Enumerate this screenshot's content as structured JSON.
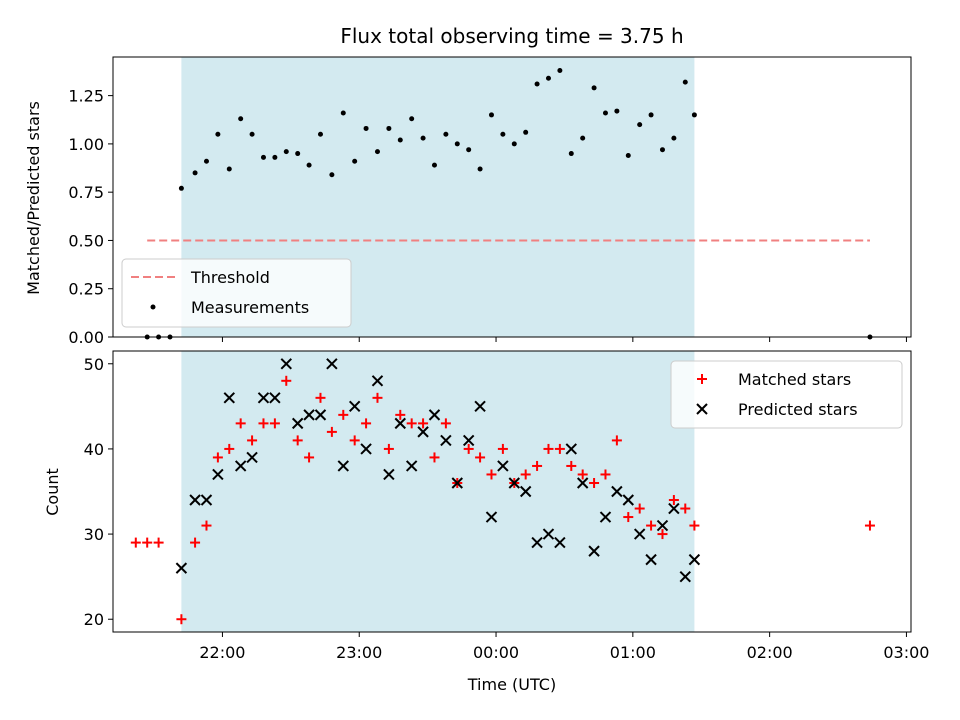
{
  "chart_data": [
    {
      "type": "scatter",
      "title": "Flux total observing time = 3.75 h",
      "ylabel": "Matched/Predicted stars",
      "xlabel": "",
      "ylim": [
        0,
        1.45
      ],
      "xlim": [
        "21:12",
        "03:02"
      ],
      "yticks": [
        0.0,
        0.25,
        0.5,
        0.75,
        1.0,
        1.25
      ],
      "ytick_labels": [
        "0.00",
        "0.25",
        "0.50",
        "0.75",
        "1.00",
        "1.25"
      ],
      "shaded_span": {
        "start": "21:42",
        "end": "01:27",
        "color": "#d3eaf0"
      },
      "threshold": {
        "name": "Threshold",
        "value": 0.5,
        "x_start": "21:27",
        "x_end": "02:44",
        "color": "#f08080",
        "style": "dashed"
      },
      "legend": {
        "position": "lower-left",
        "entries": [
          "Threshold",
          "Measurements"
        ]
      },
      "series": [
        {
          "name": "Measurements",
          "color": "#000000",
          "x": [
            "21:27",
            "21:32",
            "21:37",
            "21:42",
            "21:48",
            "21:53",
            "21:58",
            "22:03",
            "22:08",
            "22:13",
            "22:18",
            "22:23",
            "22:28",
            "22:33",
            "22:38",
            "22:43",
            "22:48",
            "22:53",
            "22:58",
            "23:03",
            "23:08",
            "23:13",
            "23:18",
            "23:23",
            "23:28",
            "23:33",
            "23:38",
            "23:43",
            "23:48",
            "23:53",
            "23:58",
            "00:03",
            "00:08",
            "00:13",
            "00:18",
            "00:23",
            "00:28",
            "00:33",
            "00:38",
            "00:43",
            "00:48",
            "00:53",
            "00:58",
            "01:03",
            "01:08",
            "01:13",
            "01:18",
            "01:23",
            "01:27",
            "02:44"
          ],
          "y": [
            0.0,
            0.0,
            0.0,
            0.77,
            0.85,
            0.91,
            1.05,
            0.87,
            1.13,
            1.05,
            0.93,
            0.93,
            0.96,
            0.95,
            0.89,
            1.05,
            0.84,
            1.16,
            0.91,
            1.08,
            0.96,
            1.08,
            1.02,
            1.13,
            1.03,
            0.89,
            1.05,
            1.0,
            0.97,
            0.87,
            1.15,
            1.05,
            1.0,
            1.06,
            1.31,
            1.34,
            1.38,
            0.95,
            1.03,
            1.29,
            1.16,
            1.17,
            0.94,
            1.1,
            1.15,
            0.97,
            1.03,
            1.32,
            1.15,
            0.0
          ]
        }
      ]
    },
    {
      "type": "scatter",
      "title": "",
      "ylabel": "Count",
      "xlabel": "Time (UTC)",
      "ylim": [
        18.5,
        51.5
      ],
      "xlim": [
        "21:12",
        "03:02"
      ],
      "yticks": [
        20,
        30,
        40,
        50
      ],
      "ytick_labels": [
        "20",
        "30",
        "40",
        "50"
      ],
      "xticks": [
        "22:00",
        "23:00",
        "00:00",
        "01:00",
        "02:00",
        "03:00"
      ],
      "shaded_span": {
        "start": "21:42",
        "end": "01:27",
        "color": "#d3eaf0"
      },
      "legend": {
        "position": "upper-right",
        "entries": [
          "Matched stars",
          "Predicted stars"
        ]
      },
      "series": [
        {
          "name": "Matched stars",
          "marker": "plus",
          "color": "#ff0000",
          "x": [
            "21:22",
            "21:27",
            "21:32",
            "21:42",
            "21:48",
            "21:53",
            "21:58",
            "22:03",
            "22:08",
            "22:13",
            "22:18",
            "22:23",
            "22:28",
            "22:33",
            "22:38",
            "22:43",
            "22:48",
            "22:53",
            "22:58",
            "23:03",
            "23:08",
            "23:13",
            "23:18",
            "23:23",
            "23:28",
            "23:33",
            "23:38",
            "23:43",
            "23:48",
            "23:53",
            "23:58",
            "00:03",
            "00:08",
            "00:13",
            "00:18",
            "00:23",
            "00:28",
            "00:33",
            "00:38",
            "00:43",
            "00:48",
            "00:53",
            "00:58",
            "01:03",
            "01:08",
            "01:13",
            "01:18",
            "01:23",
            "01:27",
            "02:44"
          ],
          "y": [
            29,
            29,
            29,
            20,
            29,
            31,
            39,
            40,
            43,
            41,
            43,
            43,
            48,
            41,
            39,
            46,
            42,
            44,
            41,
            43,
            46,
            40,
            44,
            43,
            43,
            39,
            43,
            36,
            40,
            39,
            37,
            40,
            36,
            37,
            38,
            40,
            40,
            38,
            37,
            36,
            37,
            41,
            32,
            33,
            31,
            30,
            34,
            33,
            31,
            31
          ]
        },
        {
          "name": "Predicted stars",
          "marker": "x",
          "color": "#000000",
          "x": [
            "21:42",
            "21:48",
            "21:53",
            "21:58",
            "22:03",
            "22:08",
            "22:13",
            "22:18",
            "22:23",
            "22:28",
            "22:33",
            "22:38",
            "22:43",
            "22:48",
            "22:53",
            "22:58",
            "23:03",
            "23:08",
            "23:13",
            "23:18",
            "23:23",
            "23:28",
            "23:33",
            "23:38",
            "23:43",
            "23:48",
            "23:53",
            "23:58",
            "00:03",
            "00:08",
            "00:13",
            "00:18",
            "00:23",
            "00:28",
            "00:33",
            "00:38",
            "00:43",
            "00:48",
            "00:53",
            "00:58",
            "01:03",
            "01:08",
            "01:13",
            "01:18",
            "01:23",
            "01:27"
          ],
          "y": [
            26,
            34,
            34,
            37,
            46,
            38,
            39,
            46,
            46,
            50,
            43,
            44,
            44,
            50,
            38,
            45,
            40,
            48,
            37,
            43,
            38,
            42,
            44,
            41,
            36,
            41,
            45,
            32,
            38,
            36,
            35,
            29,
            30,
            29,
            40,
            36,
            28,
            32,
            35,
            34,
            30,
            27,
            31,
            33,
            25,
            27
          ]
        }
      ]
    }
  ]
}
